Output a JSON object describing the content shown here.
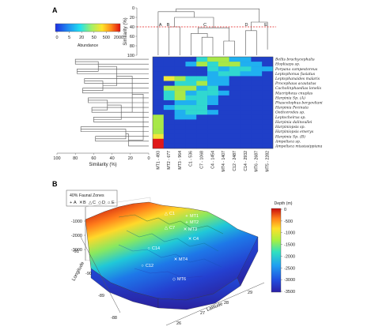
{
  "panels": {
    "a_label": "A",
    "b_label": "B"
  },
  "colors": {
    "cutoff_line": "#e32020",
    "heatmap_bg": "#1f3fc8",
    "dendro_line": "#555555"
  },
  "chart_data": [
    {
      "type": "heatmap",
      "panel": "A",
      "colorbar": {
        "title": "Abundance",
        "ticks": [
          "0",
          "5",
          "20",
          "50",
          "500",
          "2000"
        ]
      },
      "top_dendrogram": {
        "ylabel": "Similarity (%)",
        "yticks": [
          "0",
          "20",
          "40",
          "60",
          "80",
          "100"
        ],
        "ylim": [
          0,
          100
        ],
        "cutoff": 40,
        "zone_letters": [
          "A",
          "B",
          "C",
          "D",
          "E"
        ]
      },
      "side_dendrogram": {
        "xlabel": "Similarity (%)",
        "xticks": [
          "0",
          "20",
          "40",
          "60",
          "80",
          "100"
        ]
      },
      "sites": [
        "MT1 - 493",
        "MT2 - 677",
        "MT3 - 964",
        "C1 - 536",
        "C7 - 1068",
        "C4 - 1454",
        "MT4 - 1407",
        "C12 - 2487",
        "C14 - 2932",
        "MT6 - 2687",
        "MT5 - 2282"
      ],
      "species": [
        "Bellis brachycephalis",
        "Hoplisaps sp.",
        "Porpana campestoreus",
        "Leptophonus fusiatus",
        "Leptophanaides malaris",
        "Procephaus acautatus",
        "Cacholinphaedias lonelis",
        "Macripheus cnuplas",
        "Harpinia Sp. (A)",
        "Phascolophus bergovliani",
        "Harpinia Pecinata",
        "Oedicerodes sp.",
        "Leptocheirus sp.",
        "Harpinia dalinoullei",
        "Harpiniopsis sp.",
        "Harpiniopsis emerys",
        "Harpinia Sp. (B)",
        "Ampelisca sp.",
        "Ampelisca mississippiana"
      ],
      "values": [
        [
          0,
          0,
          0,
          0,
          8,
          20,
          15,
          5,
          2,
          0,
          0
        ],
        [
          0,
          0,
          0,
          6,
          18,
          10,
          20,
          15,
          5,
          5,
          0
        ],
        [
          0,
          0,
          0,
          0,
          0,
          10,
          5,
          12,
          8,
          5,
          3
        ],
        [
          0,
          0,
          0,
          0,
          0,
          5,
          10,
          10,
          5,
          4,
          0
        ],
        [
          0,
          30,
          25,
          10,
          8,
          6,
          5,
          0,
          0,
          0,
          0
        ],
        [
          0,
          0,
          10,
          8,
          20,
          5,
          5,
          0,
          0,
          0,
          0
        ],
        [
          0,
          20,
          15,
          15,
          5,
          10,
          0,
          0,
          0,
          0,
          0
        ],
        [
          0,
          10,
          15,
          5,
          10,
          10,
          5,
          0,
          0,
          0,
          0
        ],
        [
          0,
          8,
          20,
          12,
          8,
          5,
          0,
          0,
          0,
          0,
          0
        ],
        [
          0,
          0,
          5,
          6,
          8,
          5,
          0,
          0,
          0,
          0,
          0
        ],
        [
          0,
          5,
          10,
          10,
          8,
          0,
          0,
          0,
          0,
          0,
          0
        ],
        [
          0,
          0,
          5,
          8,
          10,
          5,
          0,
          0,
          0,
          0,
          0
        ],
        [
          20,
          0,
          5,
          6,
          0,
          0,
          0,
          0,
          0,
          0,
          0
        ],
        [
          20,
          0,
          0,
          0,
          0,
          0,
          0,
          0,
          0,
          0,
          0
        ],
        [
          25,
          0,
          0,
          0,
          0,
          0,
          0,
          0,
          0,
          0,
          0
        ],
        [
          25,
          0,
          0,
          0,
          0,
          0,
          0,
          0,
          0,
          0,
          0
        ],
        [
          50,
          0,
          0,
          0,
          0,
          0,
          0,
          0,
          0,
          0,
          0
        ],
        [
          800,
          0,
          0,
          0,
          0,
          0,
          0,
          0,
          0,
          0,
          0
        ],
        [
          2000,
          0,
          0,
          0,
          0,
          0,
          0,
          0,
          0,
          0,
          0
        ]
      ]
    },
    {
      "type": "surface3d",
      "panel": "B",
      "legend": {
        "title": "40% Faunal Zones",
        "entries": [
          {
            "symbol": "+",
            "label": "A"
          },
          {
            "symbol": "✕",
            "label": "B"
          },
          {
            "symbol": "△",
            "label": "C"
          },
          {
            "symbol": "◇",
            "label": "D"
          },
          {
            "symbol": "○",
            "label": "E"
          }
        ]
      },
      "colorbar": {
        "title": "Depth (m)",
        "ticks": [
          "0",
          "-500",
          "-1000",
          "-1500",
          "-2000",
          "-2500",
          "-3000",
          "-3500"
        ]
      },
      "z_ticks": [
        "-1000",
        "-2000",
        "-3000"
      ],
      "longitude_label": "Longitude",
      "longitude_ticks": [
        "-91",
        "-90",
        "-89",
        "-88"
      ],
      "latitude_label": "Latitude",
      "latitude_ticks": [
        "26",
        "27",
        "28",
        "29"
      ],
      "stations": [
        {
          "label": "C1",
          "symbol": "△"
        },
        {
          "label": "MT1",
          "symbol": "+"
        },
        {
          "label": "MT2",
          "symbol": "+"
        },
        {
          "label": "C7",
          "symbol": "△"
        },
        {
          "label": "MT3",
          "symbol": "✕"
        },
        {
          "label": "C4",
          "symbol": "✕"
        },
        {
          "label": "C14",
          "symbol": "○"
        },
        {
          "label": "MT4",
          "symbol": "✕"
        },
        {
          "label": "C12",
          "symbol": "○"
        },
        {
          "label": "MT6",
          "symbol": "◇"
        }
      ]
    }
  ]
}
